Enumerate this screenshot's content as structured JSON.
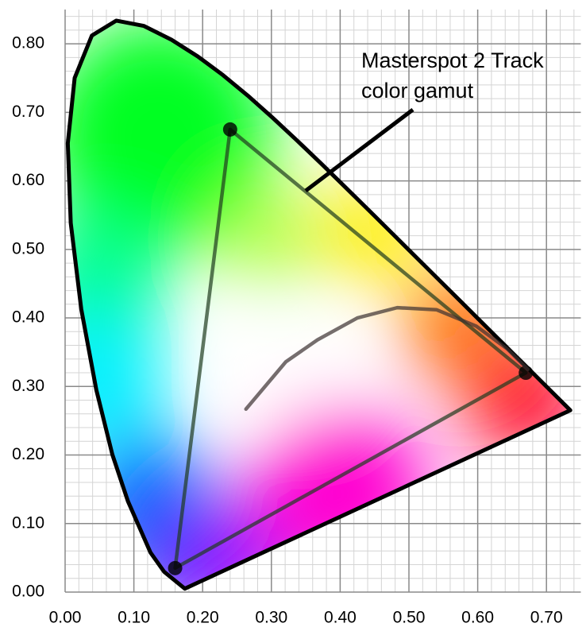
{
  "chart_data": {
    "type": "line",
    "annotation": [
      "Masterspot 2 Track",
      "color gamut"
    ],
    "xlim": [
      0,
      0.75
    ],
    "ylim": [
      0,
      0.85
    ],
    "xticks": [
      {
        "value": 0,
        "label": "0.00"
      },
      {
        "value": 0.1,
        "label": "0.10"
      },
      {
        "value": 0.2,
        "label": "0.20"
      },
      {
        "value": 0.3,
        "label": "0.30"
      },
      {
        "value": 0.4,
        "label": "0.40"
      },
      {
        "value": 0.5,
        "label": "0.50"
      },
      {
        "value": 0.6,
        "label": "0.60"
      },
      {
        "value": 0.7,
        "label": "0.70"
      }
    ],
    "yticks": [
      {
        "value": 0,
        "label": "0.00"
      },
      {
        "value": 0.1,
        "label": "0.10"
      },
      {
        "value": 0.2,
        "label": "0.20"
      },
      {
        "value": 0.3,
        "label": "0.30"
      },
      {
        "value": 0.4,
        "label": "0.40"
      },
      {
        "value": 0.5,
        "label": "0.50"
      },
      {
        "value": 0.6,
        "label": "0.60"
      },
      {
        "value": 0.7,
        "label": "0.70"
      },
      {
        "value": 0.8,
        "label": "0.80"
      }
    ],
    "grid": true,
    "minor_grid": true,
    "series": [
      {
        "color": "#000000",
        "closed": true,
        "markers": false,
        "x": [
          0.1741,
          0.144,
          0.1241,
          0.0913,
          0.0687,
          0.0454,
          0.0235,
          0.0082,
          0.0039,
          0.0139,
          0.0389,
          0.0743,
          0.1142,
          0.1547,
          0.1929,
          0.2296,
          0.2658,
          0.3016,
          0.3373,
          0.3731,
          0.4087,
          0.4441,
          0.4788,
          0.5125,
          0.5448,
          0.5752,
          0.6029,
          0.627,
          0.6482,
          0.6658,
          0.6915,
          0.7347
        ],
        "values": [
          0.005,
          0.0297,
          0.0578,
          0.1327,
          0.2007,
          0.295,
          0.4127,
          0.5384,
          0.6548,
          0.7502,
          0.812,
          0.8338,
          0.8262,
          0.8059,
          0.7816,
          0.7543,
          0.7243,
          0.6923,
          0.6589,
          0.6245,
          0.5896,
          0.5547,
          0.5202,
          0.4866,
          0.4544,
          0.4242,
          0.3965,
          0.3725,
          0.3514,
          0.334,
          0.3083,
          0.2653
        ]
      },
      {
        "color": "#1e3a1e",
        "closed": true,
        "markers": true,
        "x": [
          0.24,
          0.67,
          0.16
        ],
        "values": [
          0.675,
          0.32,
          0.035
        ]
      },
      {
        "color": "#3a3030",
        "closed": false,
        "markers": false,
        "x": [
          0.263,
          0.321,
          0.367,
          0.425,
          0.483,
          0.54,
          0.598,
          0.644,
          0.673
        ],
        "values": [
          0.267,
          0.336,
          0.368,
          0.4,
          0.415,
          0.412,
          0.388,
          0.354,
          0.325
        ]
      }
    ]
  }
}
